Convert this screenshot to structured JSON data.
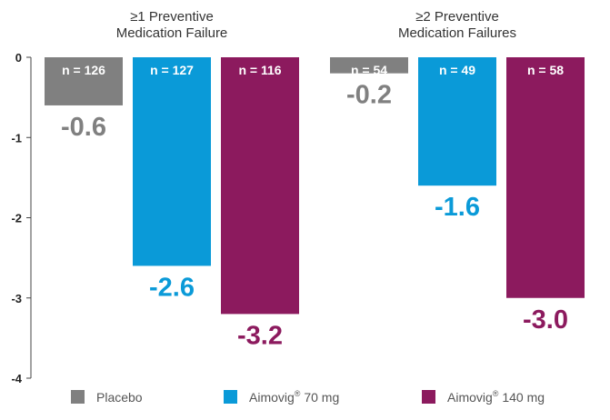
{
  "chart_data": {
    "type": "bar",
    "title": "",
    "xlabel": "",
    "ylabel": "",
    "ylim": [
      -4,
      0
    ],
    "yticks": [
      0,
      -1,
      -2,
      -3,
      -4
    ],
    "grid": false,
    "legend_position": "bottom",
    "categories": [
      {
        "line1": "≥1 Preventive",
        "line2": "Medication Failure"
      },
      {
        "line1": "≥2 Preventive",
        "line2": "Medication Failures"
      }
    ],
    "series": [
      {
        "name": "Placebo",
        "legend_main": "Placebo",
        "legend_sup": "",
        "legend_rest": "",
        "color": "#808080",
        "values": [
          -0.6,
          -0.2
        ],
        "value_labels": [
          "-0.6",
          "-0.2"
        ],
        "n_labels": [
          "n = 126",
          "n = 54"
        ]
      },
      {
        "name": "Aimovig® 70 mg",
        "legend_main": "Aimovig",
        "legend_sup": "®",
        "legend_rest": " 70 mg",
        "color": "#0a9ad8",
        "values": [
          -2.6,
          -1.6
        ],
        "value_labels": [
          "-2.6",
          "-1.6"
        ],
        "n_labels": [
          "n = 127",
          "n = 49"
        ]
      },
      {
        "name": "Aimovig® 140 mg",
        "legend_main": "Aimovig",
        "legend_sup": "®",
        "legend_rest": " 140 mg",
        "color": "#8c1a5e",
        "values": [
          -3.2,
          -3.0
        ],
        "value_labels": [
          "-3.2",
          "-3.0"
        ],
        "n_labels": [
          "n = 116",
          "n = 58"
        ]
      }
    ]
  }
}
